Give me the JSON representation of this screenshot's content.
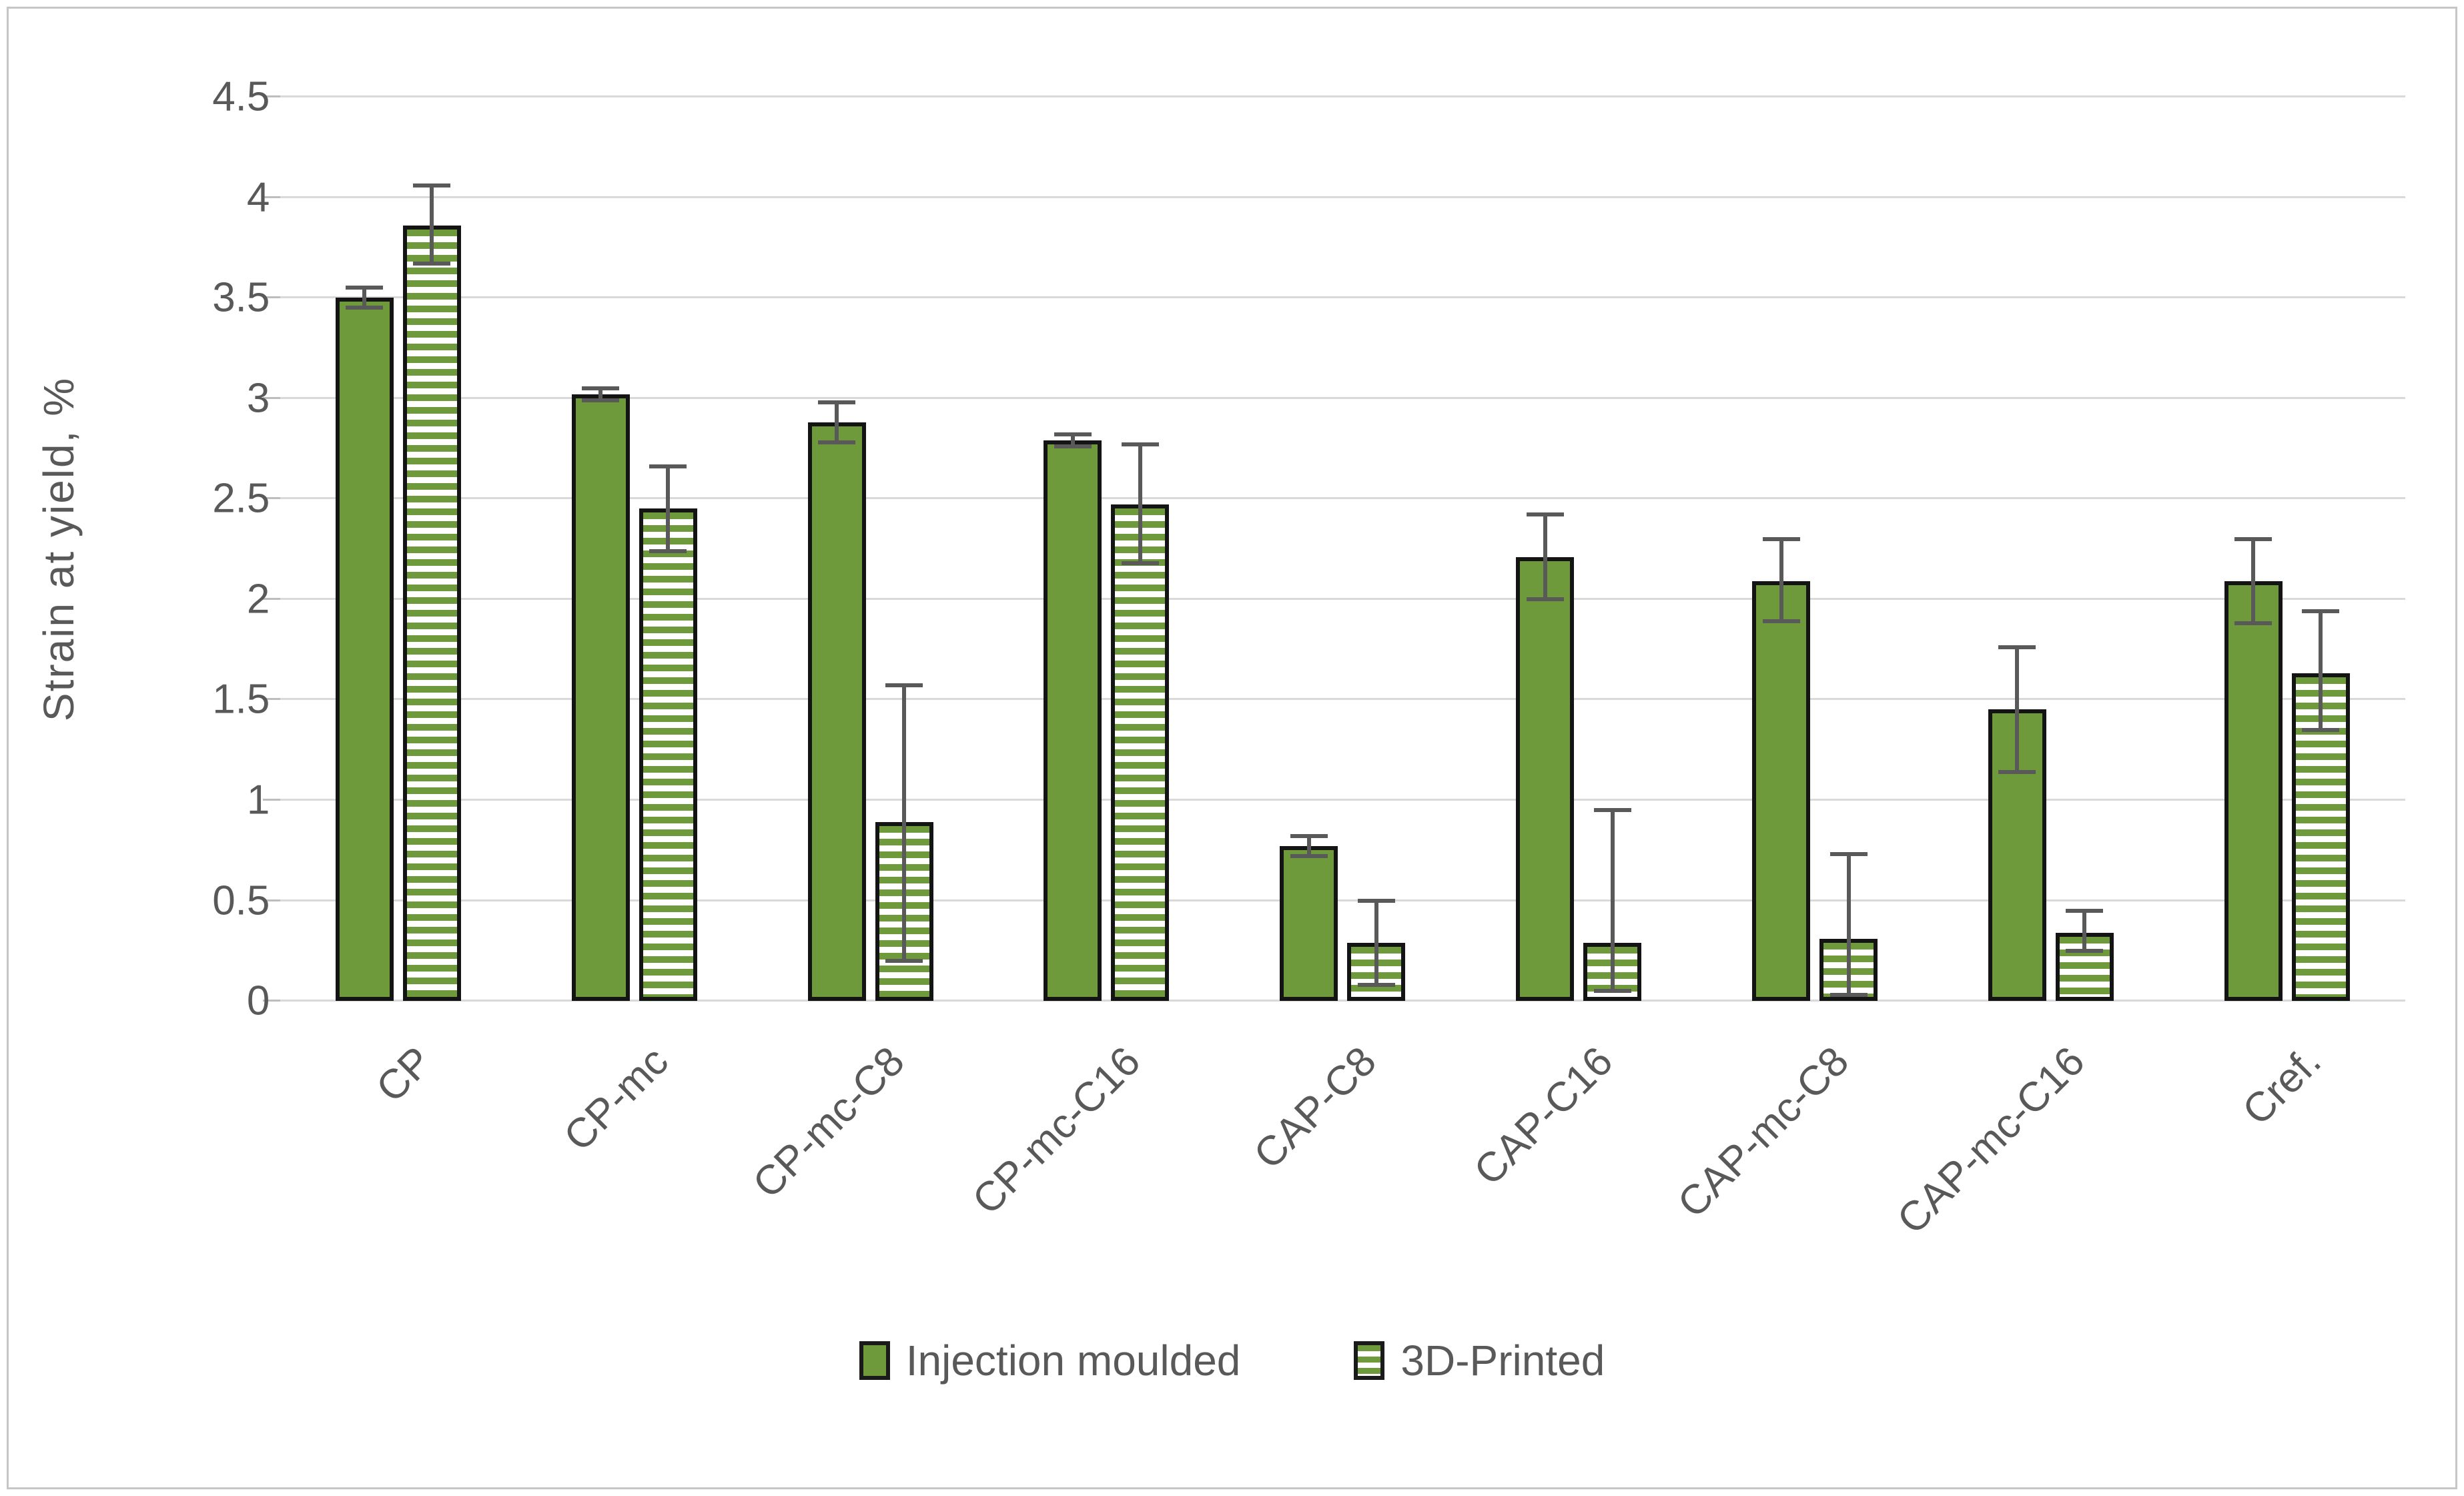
{
  "chart_data": {
    "type": "bar",
    "title": "",
    "xlabel": "",
    "ylabel": "Strain at yield, %",
    "ylim": [
      0,
      4.5
    ],
    "ytick_step": 0.5,
    "ytick_labels": [
      "0",
      "0.5",
      "1",
      "1.5",
      "2",
      "2.5",
      "3",
      "3.5",
      "4",
      "4.5"
    ],
    "grid": "horizontal-only",
    "legend_position": "bottom-center",
    "categories": [
      "CP",
      "CP-mc",
      "CP-mc-C8",
      "CP-mc-C16",
      "CAP-C8",
      "CAP-C16",
      "CAP-mc-C8",
      "CAP-mc-C16",
      "Cref."
    ],
    "series": [
      {
        "name": "Injection moulded",
        "pattern": "solid",
        "values": [
          3.5,
          3.02,
          2.88,
          2.79,
          0.77,
          2.21,
          2.09,
          1.45,
          2.09
        ],
        "error_low": [
          3.45,
          2.99,
          2.78,
          2.76,
          0.72,
          2.0,
          1.89,
          1.14,
          1.88
        ],
        "error_high": [
          3.55,
          3.05,
          2.98,
          2.82,
          0.82,
          2.42,
          2.3,
          1.76,
          2.3
        ]
      },
      {
        "name": "3D-Printed",
        "pattern": "horizontal-stripes",
        "values": [
          3.86,
          2.45,
          0.89,
          2.47,
          0.29,
          0.29,
          0.31,
          0.34,
          1.63
        ],
        "error_low": [
          3.67,
          2.24,
          0.2,
          2.18,
          0.08,
          0.05,
          0.03,
          0.25,
          1.35
        ],
        "error_high": [
          4.06,
          2.66,
          1.57,
          2.77,
          0.5,
          0.95,
          0.73,
          0.45,
          1.94
        ]
      }
    ],
    "colors": {
      "bar_green": "#6e9a3b",
      "bar_border": "#141414",
      "error_bar": "#595959",
      "gridline": "#d9d9d9",
      "axis_text": "#595959",
      "background": "#ffffff",
      "figure_border": "#c6c6c6"
    }
  }
}
